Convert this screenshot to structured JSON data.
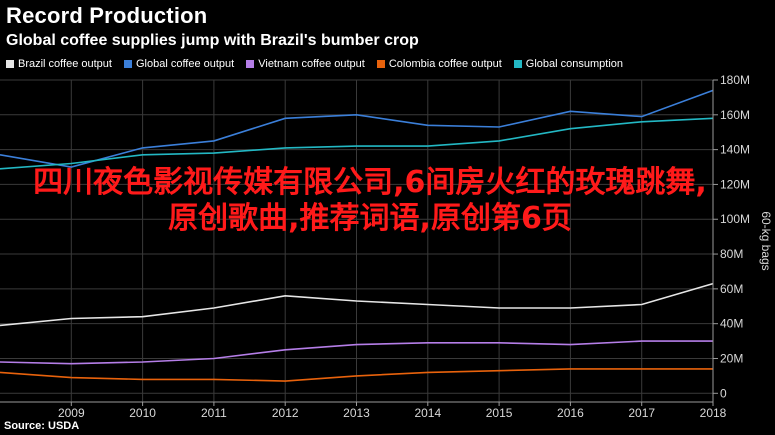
{
  "header": {
    "title": "Record Production",
    "subtitle": "Global coffee supplies jump with Brazil's bumber crop"
  },
  "legend": [
    {
      "label": "Brazil coffee output",
      "color": "#e6e6e6"
    },
    {
      "label": "Global coffee output",
      "color": "#3b7fd9"
    },
    {
      "label": "Vietnam coffee output",
      "color": "#b57ee8"
    },
    {
      "label": "Colombia coffee output",
      "color": "#e8620c"
    },
    {
      "label": "Global consumption",
      "color": "#23b8c4"
    }
  ],
  "overlay_text": "四川夜色影视传媒有限公司,6间房火红的玫瑰跳舞,原创歌曲,推荐词语,原创第6页",
  "source": "Source: USDA",
  "chart_data": {
    "type": "line",
    "title": "Record Production",
    "subtitle": "Global coffee supplies jump with Brazil's bumber crop",
    "x": [
      2008,
      2009,
      2010,
      2011,
      2012,
      2013,
      2014,
      2015,
      2016,
      2017,
      2018
    ],
    "xlim": [
      2008,
      2018
    ],
    "x_ticks": [
      "2009",
      "2010",
      "2011",
      "2012",
      "2013",
      "2014",
      "2015",
      "2016",
      "2017",
      "2018"
    ],
    "ylim": [
      -5,
      180
    ],
    "y_ticks": [
      "0",
      "20M",
      "40M",
      "60M",
      "80M",
      "100M",
      "120M",
      "140M",
      "160M",
      "180M"
    ],
    "ylabel": "60-kg bags",
    "grid": true,
    "legend_position": "top",
    "series": [
      {
        "name": "Brazil coffee output",
        "color": "#e6e6e6",
        "values": [
          39,
          43,
          44,
          49,
          56,
          53,
          51,
          49,
          49,
          51,
          63
        ]
      },
      {
        "name": "Global coffee output",
        "color": "#3b7fd9",
        "values": [
          137,
          130,
          141,
          145,
          158,
          160,
          154,
          153,
          162,
          159,
          174
        ]
      },
      {
        "name": "Vietnam coffee output",
        "color": "#b57ee8",
        "values": [
          18,
          17,
          18,
          20,
          25,
          28,
          29,
          29,
          28,
          30,
          30
        ]
      },
      {
        "name": "Colombia coffee output",
        "color": "#e8620c",
        "values": [
          12,
          9,
          8,
          8,
          7,
          10,
          12,
          13,
          14,
          14,
          14
        ]
      },
      {
        "name": "Global consumption",
        "color": "#23b8c4",
        "values": [
          129,
          132,
          137,
          138,
          141,
          142,
          142,
          145,
          152,
          156,
          158
        ]
      }
    ]
  }
}
